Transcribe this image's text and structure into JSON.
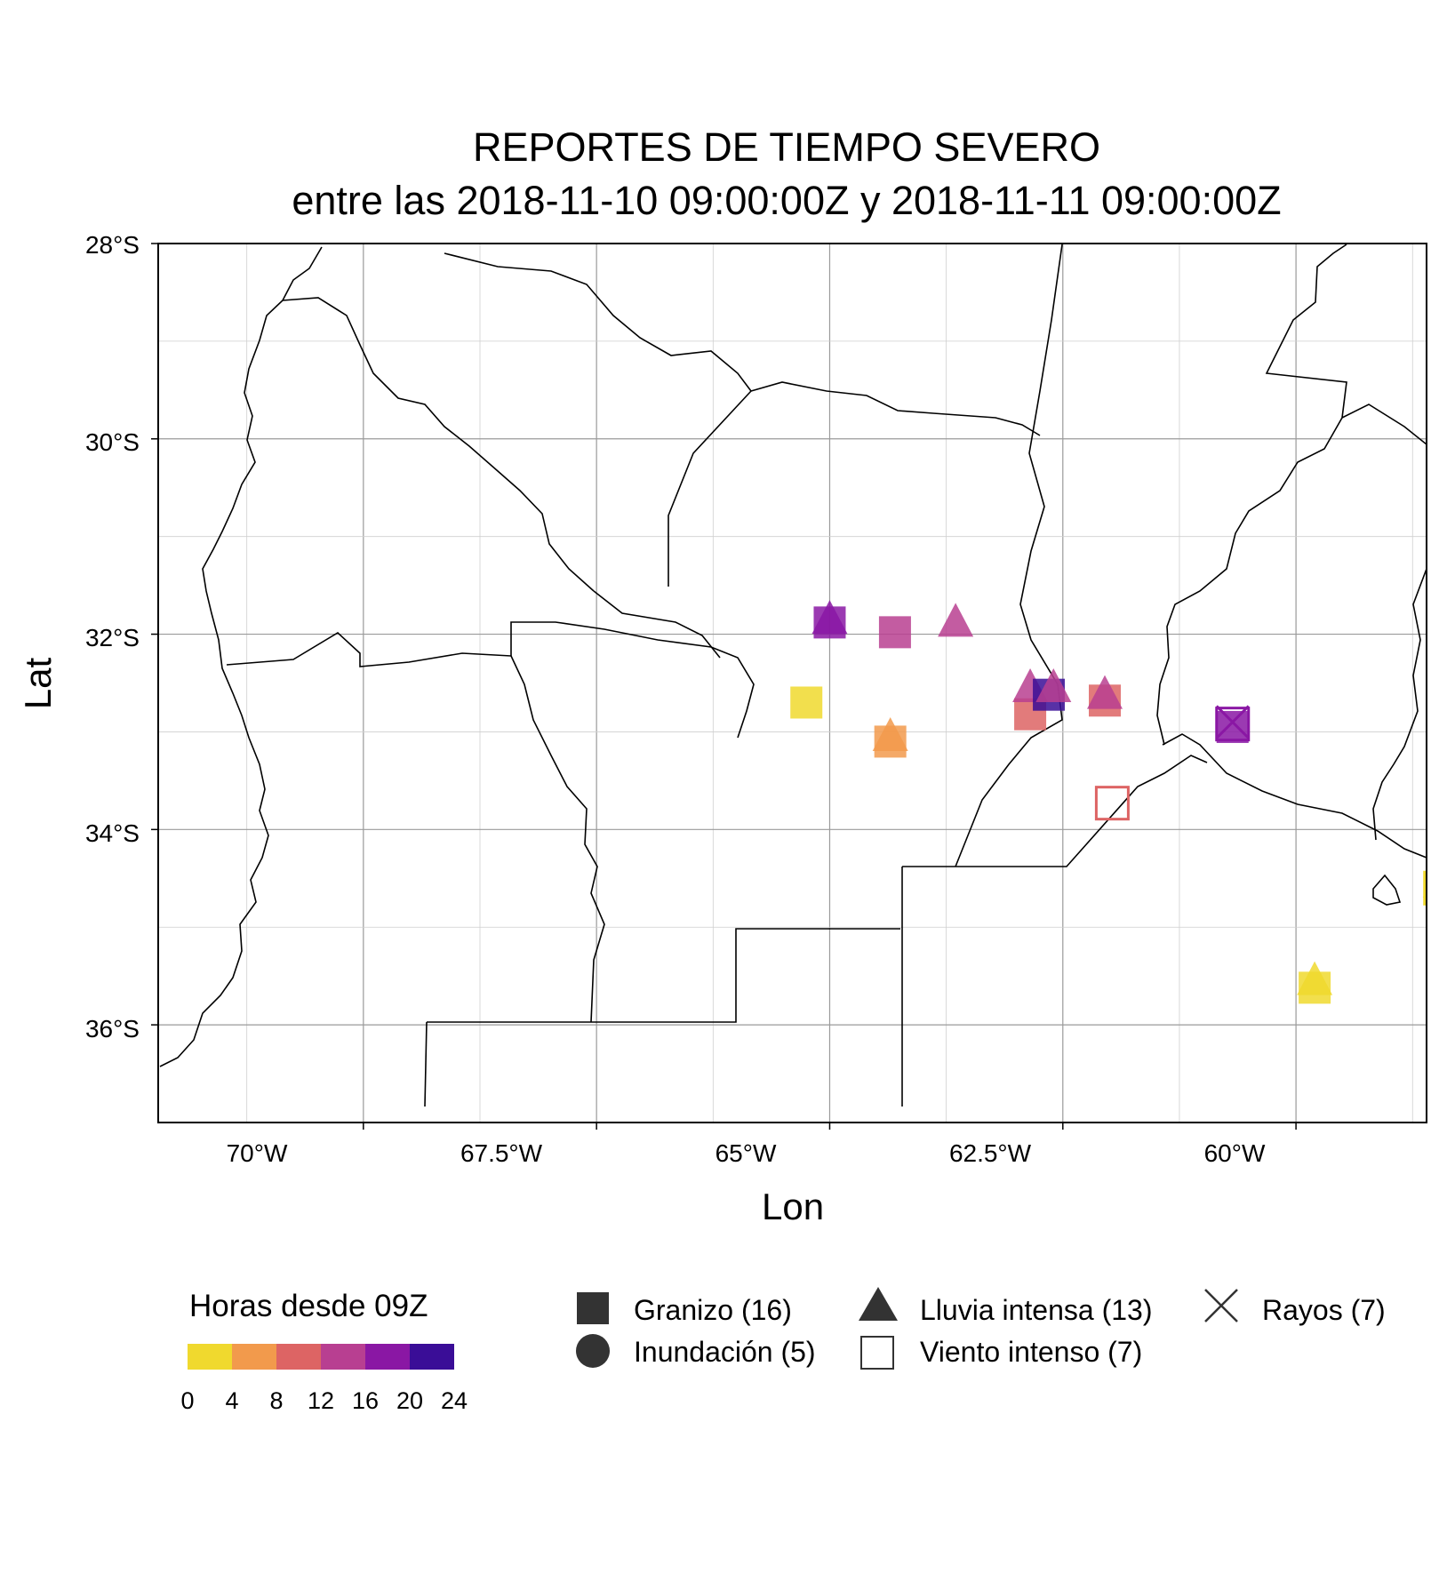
{
  "title": {
    "line1": "REPORTES DE TIEMPO SEVERO",
    "line2": "entre las 2018-11-10 09:00:00Z y 2018-11-11 09:00:00Z"
  },
  "axes": {
    "xlabel": "Lon",
    "ylabel": "Lat",
    "xlim": [
      -72.2,
      -58.6
    ],
    "ylim": [
      -37.0,
      -28.0
    ],
    "xticks": [
      {
        "value": -70.0,
        "label": "70°W"
      },
      {
        "value": -67.5,
        "label": "67.5°W"
      },
      {
        "value": -65.0,
        "label": "65°W"
      },
      {
        "value": -62.5,
        "label": "62.5°W"
      },
      {
        "value": -60.0,
        "label": "60°W"
      }
    ],
    "yticks": [
      {
        "value": -28.0,
        "label": "28°S"
      },
      {
        "value": -30.0,
        "label": "30°S"
      },
      {
        "value": -32.0,
        "label": "32°S"
      },
      {
        "value": -34.0,
        "label": "34°S"
      },
      {
        "value": -36.0,
        "label": "36°S"
      }
    ],
    "grid": true
  },
  "legend_color": {
    "title": "Horas desde 09Z",
    "breaks": [
      "0",
      "4",
      "8",
      "12",
      "16",
      "20",
      "24"
    ],
    "colors": [
      "#f0d92e",
      "#f29a4c",
      "#dd6464",
      "#b83f91",
      "#8a17a4",
      "#3a0d97"
    ]
  },
  "legend_shapes": [
    {
      "shape": "square",
      "label": "Granizo (16)"
    },
    {
      "shape": "circle",
      "label": "Inundación (5)"
    },
    {
      "shape": "triangle",
      "label": "Lluvia intensa (13)"
    },
    {
      "shape": "open-square",
      "label": "Viento intenso (7)"
    },
    {
      "shape": "cross",
      "label": "Rayos (7)"
    }
  ],
  "chart_data": {
    "type": "scatter",
    "x_field": "lon",
    "y_field": "lat",
    "color_field": "hours_since_09Z",
    "points": [
      {
        "lon": -65.25,
        "lat": -32.7,
        "hours": 2,
        "shape": "square"
      },
      {
        "lon": -65.0,
        "lat": -31.88,
        "hours": 18,
        "shape": "square"
      },
      {
        "lon": -65.0,
        "lat": -31.85,
        "hours": 17,
        "shape": "triangle"
      },
      {
        "lon": -64.3,
        "lat": -31.98,
        "hours": 12,
        "shape": "square"
      },
      {
        "lon": -63.65,
        "lat": -31.88,
        "hours": 13,
        "shape": "triangle"
      },
      {
        "lon": -64.35,
        "lat": -33.1,
        "hours": 7,
        "shape": "square"
      },
      {
        "lon": -64.35,
        "lat": -33.05,
        "hours": 7,
        "shape": "triangle"
      },
      {
        "lon": -62.85,
        "lat": -32.82,
        "hours": 9,
        "shape": "square"
      },
      {
        "lon": -62.85,
        "lat": -32.55,
        "hours": 13,
        "shape": "triangle"
      },
      {
        "lon": -62.65,
        "lat": -32.62,
        "hours": 20,
        "shape": "square"
      },
      {
        "lon": -62.6,
        "lat": -32.55,
        "hours": 15,
        "shape": "triangle"
      },
      {
        "lon": -62.05,
        "lat": -32.68,
        "hours": 11,
        "shape": "square"
      },
      {
        "lon": -62.05,
        "lat": -32.62,
        "hours": 12,
        "shape": "triangle"
      },
      {
        "lon": -61.97,
        "lat": -33.73,
        "hours": 9,
        "shape": "open-square"
      },
      {
        "lon": -60.68,
        "lat": -32.95,
        "hours": 18,
        "shape": "square"
      },
      {
        "lon": -60.68,
        "lat": -32.9,
        "hours": 17,
        "shape": "cross"
      },
      {
        "lon": -60.68,
        "lat": -32.92,
        "hours": 16,
        "shape": "open-square"
      },
      {
        "lon": -59.8,
        "lat": -35.62,
        "hours": 3,
        "shape": "square"
      },
      {
        "lon": -59.8,
        "lat": -35.55,
        "hours": 3,
        "shape": "triangle"
      },
      {
        "lon": -58.45,
        "lat": -34.6,
        "hours": 3,
        "shape": "open-square"
      },
      {
        "lon": -58.45,
        "lat": -34.55,
        "hours": 2,
        "shape": "triangle"
      },
      {
        "lon": -58.45,
        "lat": -34.6,
        "hours": 2,
        "shape": "circle"
      }
    ]
  }
}
